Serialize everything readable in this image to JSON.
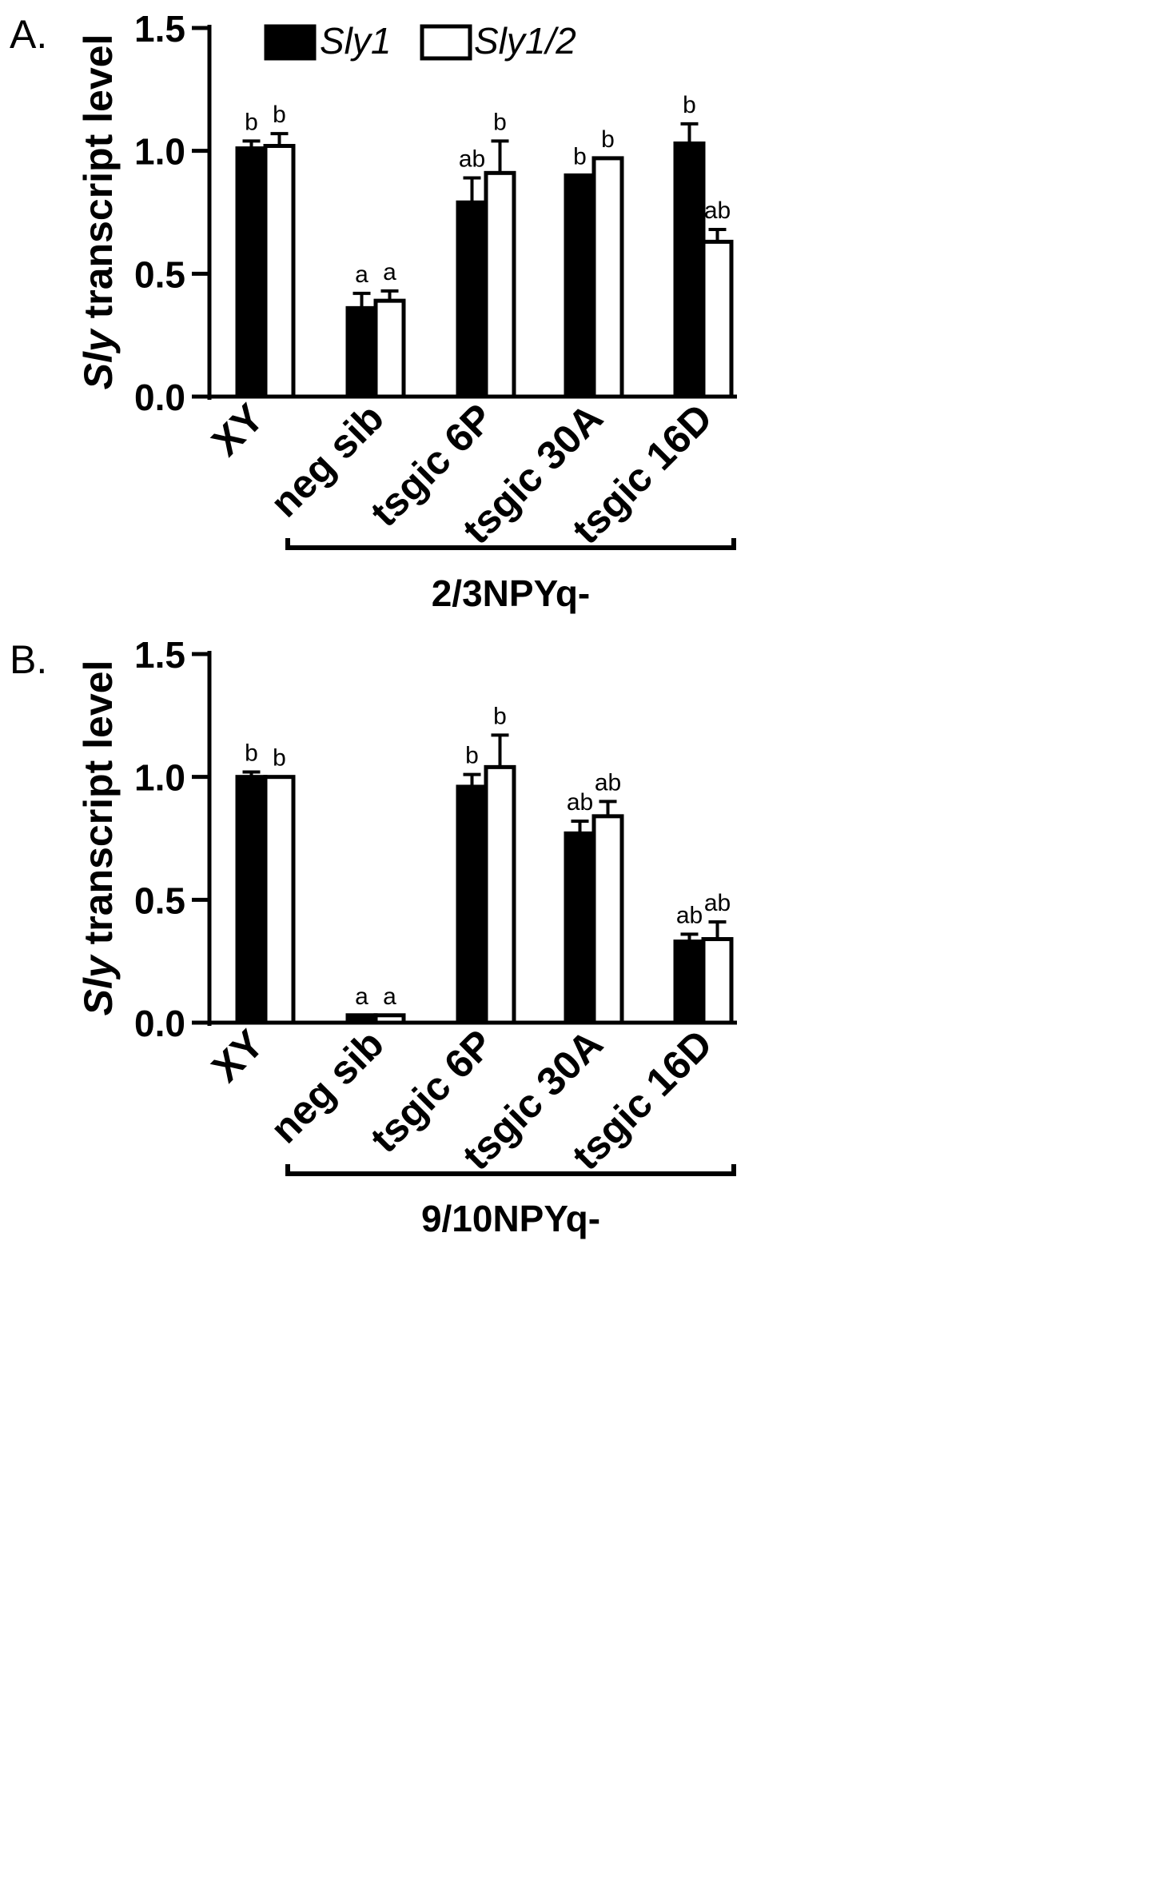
{
  "legend": {
    "series": [
      {
        "name": "Sly1",
        "fill": "#000000"
      },
      {
        "name": "Sly1/2",
        "fill": "#ffffff"
      }
    ]
  },
  "chart_data": [
    {
      "type": "bar",
      "panel_label": "A.",
      "ylabel_italic": "Sly",
      "ylabel_rest": " transcript level",
      "ylim": [
        0,
        1.5
      ],
      "yticks": [
        "0.0",
        "0.5",
        "1.0",
        "1.5"
      ],
      "categories": [
        "XY",
        "neg sib",
        "tsgic 6P",
        "tsgic 30A",
        "tsgic 16D"
      ],
      "group_bracket": {
        "label": "2/3NPYq-",
        "from_category": 1,
        "to_category": 4
      },
      "series": [
        {
          "name": "Sly1",
          "fill": "#000000",
          "values": [
            1.01,
            0.36,
            0.79,
            0.9,
            1.03
          ],
          "errors": [
            0.03,
            0.06,
            0.1,
            0.0,
            0.08
          ],
          "letters": [
            "b",
            "a",
            "ab",
            "b",
            "b"
          ]
        },
        {
          "name": "Sly1/2",
          "fill": "#ffffff",
          "values": [
            1.02,
            0.39,
            0.91,
            0.97,
            0.63
          ],
          "errors": [
            0.05,
            0.04,
            0.13,
            0.0,
            0.05
          ],
          "letters": [
            "b",
            "a",
            "b",
            "b",
            "ab"
          ]
        }
      ]
    },
    {
      "type": "bar",
      "panel_label": "B.",
      "ylabel_italic": "Sly",
      "ylabel_rest": " transcript level",
      "ylim": [
        0,
        1.5
      ],
      "yticks": [
        "0.0",
        "0.5",
        "1.0",
        "1.5"
      ],
      "categories": [
        "XY",
        "neg sib",
        "tsgic 6P",
        "tsgic 30A",
        "tsgic 16D"
      ],
      "group_bracket": {
        "label": "9/10NPYq-",
        "from_category": 1,
        "to_category": 4
      },
      "series": [
        {
          "name": "Sly1",
          "fill": "#000000",
          "values": [
            1.0,
            0.03,
            0.96,
            0.77,
            0.33
          ],
          "errors": [
            0.02,
            0.0,
            0.05,
            0.05,
            0.03
          ],
          "letters": [
            "b",
            "a",
            "b",
            "ab",
            "ab"
          ]
        },
        {
          "name": "Sly1/2",
          "fill": "#ffffff",
          "values": [
            1.0,
            0.03,
            1.04,
            0.84,
            0.34
          ],
          "errors": [
            0.0,
            0.0,
            0.13,
            0.06,
            0.07
          ],
          "letters": [
            "b",
            "a",
            "b",
            "ab",
            "ab"
          ]
        }
      ]
    }
  ]
}
